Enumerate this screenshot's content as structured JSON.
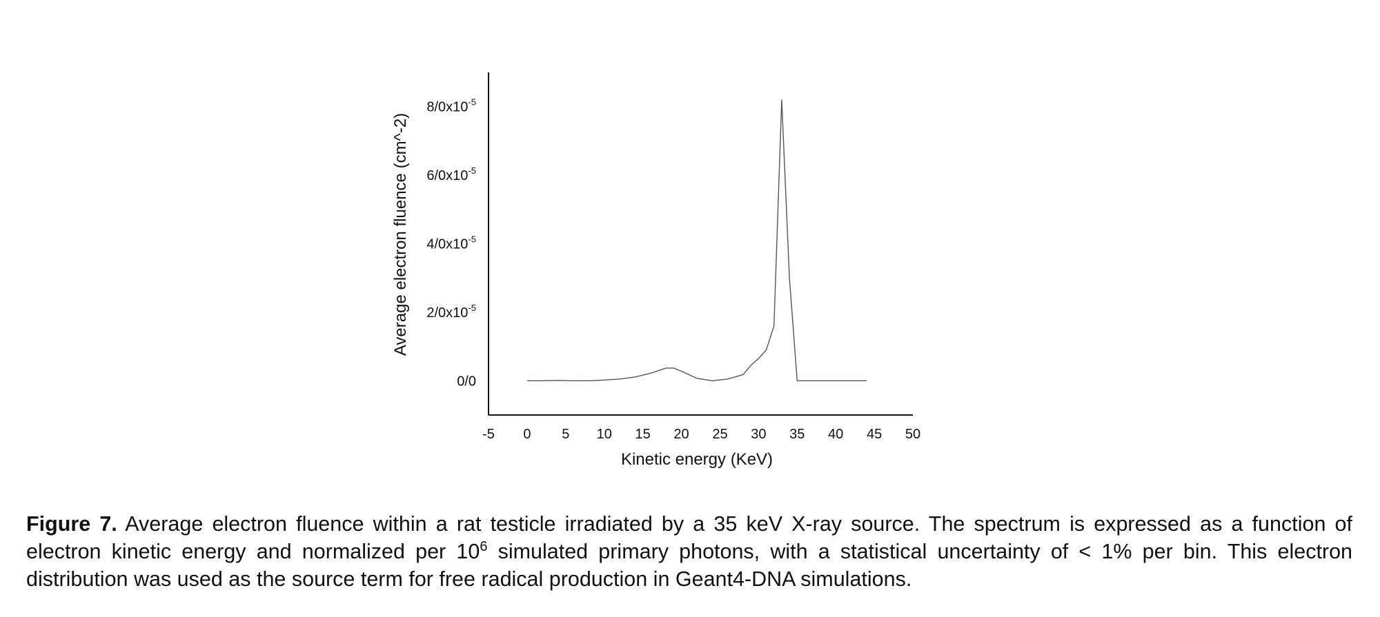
{
  "chart_data": {
    "type": "line",
    "xlabel": "Kinetic energy (KeV)",
    "ylabel": "Average electron fluence (cm^-2)",
    "xlim": [
      -5,
      50
    ],
    "ylim": [
      -1e-05,
      9e-05
    ],
    "x_ticks": [
      "-5",
      "0",
      "5",
      "10",
      "15",
      "20",
      "25",
      "30",
      "35",
      "40",
      "45",
      "50"
    ],
    "y_ticks": [
      {
        "value": 0,
        "mantissa": "0/0",
        "exponent": ""
      },
      {
        "value": 2e-05,
        "mantissa": "2/0x10",
        "exponent": "-5"
      },
      {
        "value": 4e-05,
        "mantissa": "4/0x10",
        "exponent": "-5"
      },
      {
        "value": 6e-05,
        "mantissa": "6/0x10",
        "exponent": "-5"
      },
      {
        "value": 8e-05,
        "mantissa": "8/0x10",
        "exponent": "-5"
      }
    ],
    "series": [
      {
        "x": [
          0,
          2,
          4,
          6,
          8,
          10,
          12,
          14,
          16,
          18,
          19,
          20,
          22,
          24,
          26,
          28,
          29,
          30,
          31,
          32,
          33,
          34,
          35,
          37,
          40,
          44
        ],
        "y": [
          0,
          0,
          1e-07,
          0,
          0,
          2e-07,
          5e-07,
          1.1e-06,
          2.2e-06,
          3.7e-06,
          3.7e-06,
          2.8e-06,
          7e-07,
          0,
          5e-07,
          1.8e-06,
          4.5e-06,
          6.5e-06,
          9e-06,
          1.6e-05,
          8.2e-05,
          3e-05,
          0,
          0,
          0,
          0
        ]
      }
    ]
  },
  "caption": {
    "label": "Figure 7.",
    "text_part1": " Average electron fluence within a rat testicle irradiated by a 35 keV X-ray source. The spectrum is expressed as a function of electron kinetic energy and normalized per 10",
    "superscript": "6",
    "text_part2": " simulated primary photons, with a statistical uncertainty of < 1% per bin. This electron distribution was used as the source term for free radical production in Geant4-DNA simulations."
  }
}
